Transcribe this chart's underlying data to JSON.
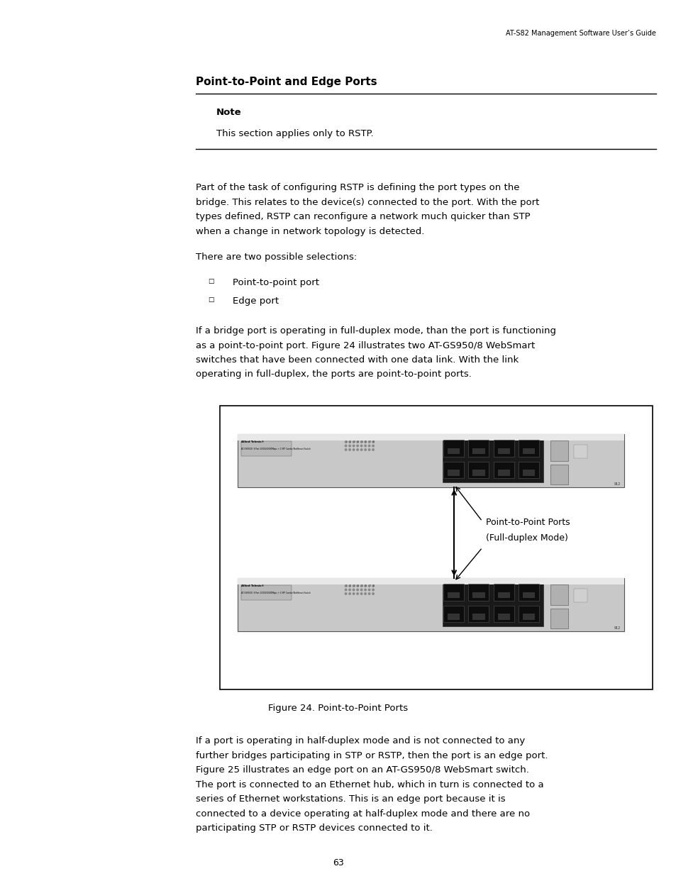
{
  "bg_color": "#ffffff",
  "page_width": 9.54,
  "page_height": 12.35,
  "dpi": 100,
  "header_text": "AT-S82 Management Software User’s Guide",
  "footer_text": "63",
  "title": "Point-to-Point and Edge Ports",
  "note_label": "Note",
  "note_text": "This section applies only to RSTP.",
  "para1_lines": [
    "Part of the task of configuring RSTP is defining the port types on the",
    "bridge. This relates to the device(s) connected to the port. With the port",
    "types defined, RSTP can reconfigure a network much quicker than STP",
    "when a change in network topology is detected."
  ],
  "para2": "There are two possible selections:",
  "bullet1": "Point-to-point port",
  "bullet2": "Edge port",
  "para3_lines": [
    "If a bridge port is operating in full-duplex mode, than the port is functioning",
    "as a point-to-point port. Figure 24 illustrates two AT-GS950/8 WebSmart",
    "switches that have been connected with one data link. With the link",
    "operating in full-duplex, the ports are point-to-point ports."
  ],
  "figure_caption": "Figure 24. Point-to-Point Ports",
  "callout_line1": "Point-to-Point Ports",
  "callout_line2": "(Full-duplex Mode)",
  "para4_lines": [
    "If a port is operating in half-duplex mode and is not connected to any",
    "further bridges participating in STP or RSTP, then the port is an edge port.",
    "Figure 25 illustrates an edge port on an AT-GS950/8 WebSmart switch.",
    "The port is connected to an Ethernet hub, which in turn is connected to a",
    "series of Ethernet workstations. This is an edge port because it is",
    "connected to a device operating at half-duplex mode and there are no",
    "participating STP or RSTP devices connected to it."
  ],
  "text_color": "#000000",
  "line_color": "#000000",
  "switch_body": "#c8c8c8",
  "switch_top": "#e0e0e0",
  "switch_dark": "#333333",
  "port_bg": "#2a2a2a",
  "port_fg": "#111111"
}
